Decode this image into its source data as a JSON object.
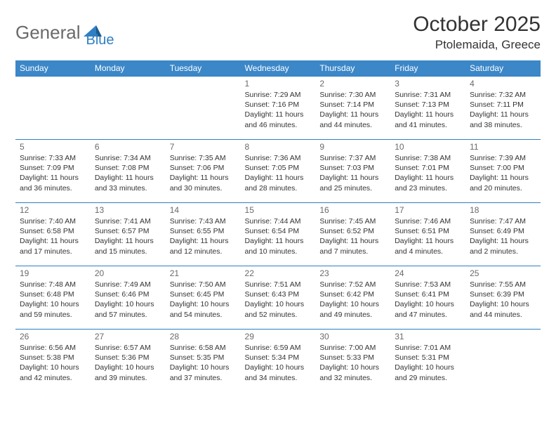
{
  "logo": {
    "part1": "General",
    "part2": "Blue"
  },
  "header": {
    "month_title": "October 2025",
    "location": "Ptolemaida, Greece"
  },
  "colors": {
    "accent": "#3b87c8",
    "rule": "#2f7fc2",
    "text": "#333333",
    "muted": "#6a6a6a",
    "bg": "#ffffff"
  },
  "day_names": [
    "Sunday",
    "Monday",
    "Tuesday",
    "Wednesday",
    "Thursday",
    "Friday",
    "Saturday"
  ],
  "weeks": [
    [
      null,
      null,
      null,
      {
        "n": "1",
        "sr": "7:29 AM",
        "ss": "7:16 PM",
        "dl": "11 hours and 46 minutes."
      },
      {
        "n": "2",
        "sr": "7:30 AM",
        "ss": "7:14 PM",
        "dl": "11 hours and 44 minutes."
      },
      {
        "n": "3",
        "sr": "7:31 AM",
        "ss": "7:13 PM",
        "dl": "11 hours and 41 minutes."
      },
      {
        "n": "4",
        "sr": "7:32 AM",
        "ss": "7:11 PM",
        "dl": "11 hours and 38 minutes."
      }
    ],
    [
      {
        "n": "5",
        "sr": "7:33 AM",
        "ss": "7:09 PM",
        "dl": "11 hours and 36 minutes."
      },
      {
        "n": "6",
        "sr": "7:34 AM",
        "ss": "7:08 PM",
        "dl": "11 hours and 33 minutes."
      },
      {
        "n": "7",
        "sr": "7:35 AM",
        "ss": "7:06 PM",
        "dl": "11 hours and 30 minutes."
      },
      {
        "n": "8",
        "sr": "7:36 AM",
        "ss": "7:05 PM",
        "dl": "11 hours and 28 minutes."
      },
      {
        "n": "9",
        "sr": "7:37 AM",
        "ss": "7:03 PM",
        "dl": "11 hours and 25 minutes."
      },
      {
        "n": "10",
        "sr": "7:38 AM",
        "ss": "7:01 PM",
        "dl": "11 hours and 23 minutes."
      },
      {
        "n": "11",
        "sr": "7:39 AM",
        "ss": "7:00 PM",
        "dl": "11 hours and 20 minutes."
      }
    ],
    [
      {
        "n": "12",
        "sr": "7:40 AM",
        "ss": "6:58 PM",
        "dl": "11 hours and 17 minutes."
      },
      {
        "n": "13",
        "sr": "7:41 AM",
        "ss": "6:57 PM",
        "dl": "11 hours and 15 minutes."
      },
      {
        "n": "14",
        "sr": "7:43 AM",
        "ss": "6:55 PM",
        "dl": "11 hours and 12 minutes."
      },
      {
        "n": "15",
        "sr": "7:44 AM",
        "ss": "6:54 PM",
        "dl": "11 hours and 10 minutes."
      },
      {
        "n": "16",
        "sr": "7:45 AM",
        "ss": "6:52 PM",
        "dl": "11 hours and 7 minutes."
      },
      {
        "n": "17",
        "sr": "7:46 AM",
        "ss": "6:51 PM",
        "dl": "11 hours and 4 minutes."
      },
      {
        "n": "18",
        "sr": "7:47 AM",
        "ss": "6:49 PM",
        "dl": "11 hours and 2 minutes."
      }
    ],
    [
      {
        "n": "19",
        "sr": "7:48 AM",
        "ss": "6:48 PM",
        "dl": "10 hours and 59 minutes."
      },
      {
        "n": "20",
        "sr": "7:49 AM",
        "ss": "6:46 PM",
        "dl": "10 hours and 57 minutes."
      },
      {
        "n": "21",
        "sr": "7:50 AM",
        "ss": "6:45 PM",
        "dl": "10 hours and 54 minutes."
      },
      {
        "n": "22",
        "sr": "7:51 AM",
        "ss": "6:43 PM",
        "dl": "10 hours and 52 minutes."
      },
      {
        "n": "23",
        "sr": "7:52 AM",
        "ss": "6:42 PM",
        "dl": "10 hours and 49 minutes."
      },
      {
        "n": "24",
        "sr": "7:53 AM",
        "ss": "6:41 PM",
        "dl": "10 hours and 47 minutes."
      },
      {
        "n": "25",
        "sr": "7:55 AM",
        "ss": "6:39 PM",
        "dl": "10 hours and 44 minutes."
      }
    ],
    [
      {
        "n": "26",
        "sr": "6:56 AM",
        "ss": "5:38 PM",
        "dl": "10 hours and 42 minutes."
      },
      {
        "n": "27",
        "sr": "6:57 AM",
        "ss": "5:36 PM",
        "dl": "10 hours and 39 minutes."
      },
      {
        "n": "28",
        "sr": "6:58 AM",
        "ss": "5:35 PM",
        "dl": "10 hours and 37 minutes."
      },
      {
        "n": "29",
        "sr": "6:59 AM",
        "ss": "5:34 PM",
        "dl": "10 hours and 34 minutes."
      },
      {
        "n": "30",
        "sr": "7:00 AM",
        "ss": "5:33 PM",
        "dl": "10 hours and 32 minutes."
      },
      {
        "n": "31",
        "sr": "7:01 AM",
        "ss": "5:31 PM",
        "dl": "10 hours and 29 minutes."
      },
      null
    ]
  ],
  "labels": {
    "sunrise": "Sunrise:",
    "sunset": "Sunset:",
    "daylight": "Daylight:"
  }
}
